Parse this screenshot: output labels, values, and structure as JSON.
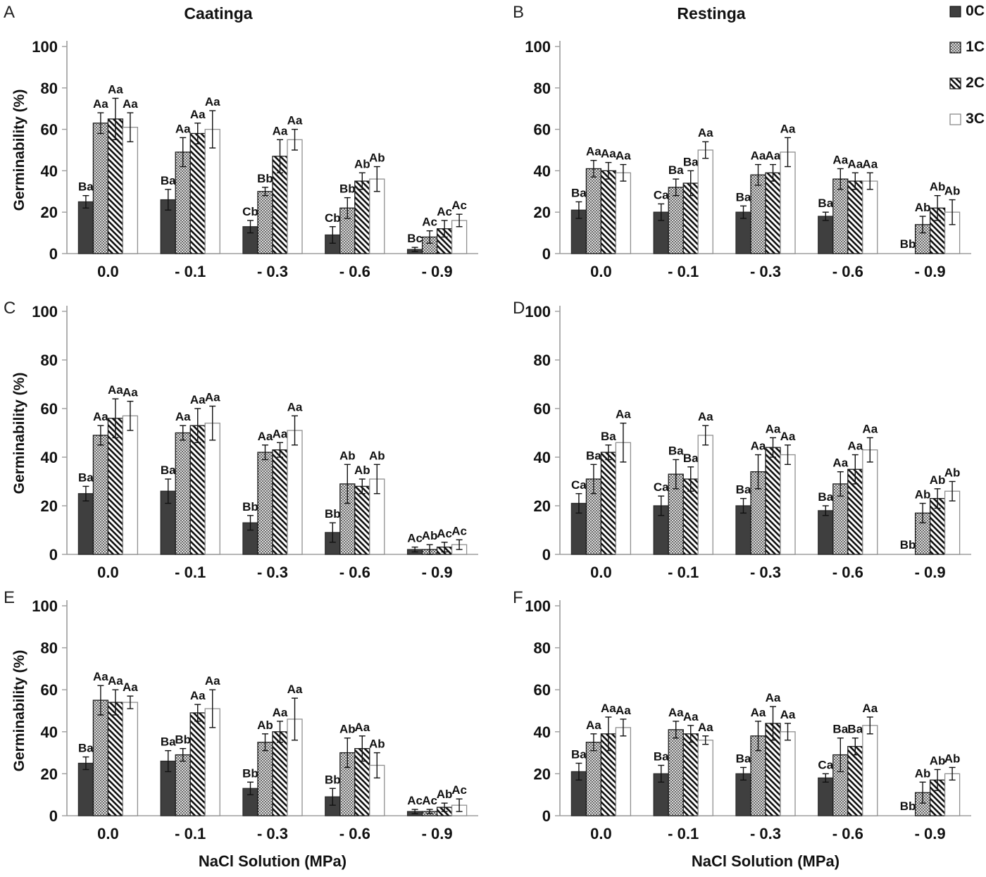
{
  "legend": {
    "items": [
      {
        "label": "0C",
        "pattern": "solid-dark"
      },
      {
        "label": "1C",
        "pattern": "dots"
      },
      {
        "label": "2C",
        "pattern": "diagonal-hatch"
      },
      {
        "label": "3C",
        "pattern": "white"
      }
    ]
  },
  "colors": {
    "bar_solid": "#3f3f3f",
    "hatch_fg": "#111111",
    "dots_bg": "#dedede",
    "dots_fg": "#3c3c3c",
    "axis": "#9d9d9d",
    "text": "#111111"
  },
  "chart_data": [
    {
      "letter": "A",
      "title": "Caatinga",
      "type": "bar",
      "ylabel": "Germinability (%)",
      "ylim": [
        0,
        100
      ],
      "yticks": [
        0,
        20,
        40,
        60,
        80,
        100
      ],
      "categories": [
        "0.0",
        "- 0.1",
        "- 0.3",
        "- 0.6",
        "- 0.9"
      ],
      "series": [
        {
          "name": "0C",
          "values": [
            25,
            26,
            13,
            9,
            2
          ],
          "errors": [
            3,
            5,
            3,
            4,
            1
          ],
          "labels": [
            "Ba",
            "Ba",
            "Cb",
            "Cb",
            "Bc"
          ]
        },
        {
          "name": "1C",
          "values": [
            63,
            49,
            30,
            22,
            8
          ],
          "errors": [
            5,
            7,
            2,
            5,
            3
          ],
          "labels": [
            "Aa",
            "Aa",
            "Bb",
            "Bb",
            "Ac"
          ]
        },
        {
          "name": "2C",
          "values": [
            65,
            58,
            47,
            35,
            12
          ],
          "errors": [
            10,
            5,
            8,
            4,
            4
          ],
          "labels": [
            "Aa",
            "Aa",
            "Aa",
            "Ab",
            "Ac"
          ]
        },
        {
          "name": "3C",
          "values": [
            61,
            60,
            55,
            36,
            16
          ],
          "errors": [
            7,
            9,
            5,
            6,
            3
          ],
          "labels": [
            "Aa",
            "Aa",
            "Aa",
            "Ab",
            "Ac"
          ]
        }
      ]
    },
    {
      "letter": "B",
      "title": "Restinga",
      "type": "bar",
      "ylim": [
        0,
        100
      ],
      "yticks": [
        0,
        20,
        40,
        60,
        80,
        100
      ],
      "categories": [
        "0.0",
        "- 0.1",
        "- 0.3",
        "- 0.6",
        "- 0.9"
      ],
      "series": [
        {
          "name": "0C",
          "values": [
            21,
            20,
            20,
            18,
            0
          ],
          "errors": [
            4,
            4,
            3,
            2,
            0
          ],
          "labels": [
            "Ba",
            "Ca",
            "Ba",
            "Ba",
            "Bb"
          ]
        },
        {
          "name": "1C",
          "values": [
            41,
            32,
            38,
            36,
            14
          ],
          "errors": [
            4,
            4,
            5,
            5,
            4
          ],
          "labels": [
            "Aa",
            "Ba",
            "Aa",
            "Aa",
            "Ab"
          ]
        },
        {
          "name": "2C",
          "values": [
            40,
            34,
            39,
            35,
            22
          ],
          "errors": [
            4,
            6,
            4,
            4,
            6
          ],
          "labels": [
            "Aa",
            "Ba",
            "Aa",
            "Aa",
            "Ab"
          ]
        },
        {
          "name": "3C",
          "values": [
            39,
            50,
            49,
            35,
            20
          ],
          "errors": [
            4,
            4,
            7,
            4,
            6
          ],
          "labels": [
            "Aa",
            "Aa",
            "Aa",
            "Aa",
            "Ab"
          ]
        }
      ]
    },
    {
      "letter": "C",
      "type": "bar",
      "ylabel": "Germinability (%)",
      "ylim": [
        0,
        100
      ],
      "yticks": [
        0,
        20,
        40,
        60,
        80,
        100
      ],
      "categories": [
        "0.0",
        "- 0.1",
        "- 0.3",
        "- 0.6",
        "- 0.9"
      ],
      "series": [
        {
          "name": "0C",
          "values": [
            25,
            26,
            13,
            9,
            2
          ],
          "errors": [
            3,
            5,
            3,
            4,
            1
          ],
          "labels": [
            "Ba",
            "Ba",
            "Bb",
            "Bb",
            "Ac"
          ]
        },
        {
          "name": "1C",
          "values": [
            49,
            50,
            42,
            29,
            2
          ],
          "errors": [
            4,
            3,
            3,
            8,
            2
          ],
          "labels": [
            "Aa",
            "Aa",
            "Aa",
            "Ab",
            "Ab"
          ]
        },
        {
          "name": "2C",
          "values": [
            56,
            53,
            43,
            28,
            3
          ],
          "errors": [
            8,
            7,
            3,
            3,
            2
          ],
          "labels": [
            "Aa",
            "Aa",
            "Aa",
            "Ab",
            "Ac"
          ]
        },
        {
          "name": "3C",
          "values": [
            57,
            54,
            51,
            31,
            4
          ],
          "errors": [
            6,
            7,
            6,
            6,
            2
          ],
          "labels": [
            "Aa",
            "Aa",
            "Aa",
            "Ab",
            "Ac"
          ]
        }
      ]
    },
    {
      "letter": "D",
      "type": "bar",
      "ylim": [
        0,
        100
      ],
      "yticks": [
        0,
        20,
        40,
        60,
        80,
        100
      ],
      "categories": [
        "0.0",
        "- 0.1",
        "- 0.3",
        "- 0.6",
        "- 0.9"
      ],
      "series": [
        {
          "name": "0C",
          "values": [
            21,
            20,
            20,
            18,
            0
          ],
          "errors": [
            4,
            4,
            3,
            2,
            0
          ],
          "labels": [
            "Ca",
            "Ca",
            "Ba",
            "Ba",
            "Bb"
          ]
        },
        {
          "name": "1C",
          "values": [
            31,
            33,
            34,
            29,
            17
          ],
          "errors": [
            6,
            6,
            7,
            5,
            4
          ],
          "labels": [
            "Ba",
            "Ba",
            "Aa",
            "Aa",
            "Ab"
          ]
        },
        {
          "name": "2C",
          "values": [
            42,
            31,
            44,
            35,
            23
          ],
          "errors": [
            3,
            5,
            4,
            6,
            4
          ],
          "labels": [
            "Ba",
            "Ba",
            "Aa",
            "Aa",
            "Ab"
          ]
        },
        {
          "name": "3C",
          "values": [
            46,
            49,
            41,
            43,
            26
          ],
          "errors": [
            8,
            4,
            4,
            5,
            4
          ],
          "labels": [
            "Aa",
            "Aa",
            "Aa",
            "Aa",
            "Ab"
          ]
        }
      ]
    },
    {
      "letter": "E",
      "type": "bar",
      "ylabel": "Germinability (%)",
      "xlabel": "NaCl Solution (MPa)",
      "ylim": [
        0,
        100
      ],
      "yticks": [
        0,
        20,
        40,
        60,
        80,
        100
      ],
      "categories": [
        "0.0",
        "- 0.1",
        "- 0.3",
        "- 0.6",
        "- 0.9"
      ],
      "series": [
        {
          "name": "0C",
          "values": [
            25,
            26,
            13,
            9,
            2
          ],
          "errors": [
            3,
            5,
            3,
            4,
            1
          ],
          "labels": [
            "Ba",
            "Ba",
            "Bb",
            "Bb",
            "Ac"
          ]
        },
        {
          "name": "1C",
          "values": [
            55,
            29,
            35,
            30,
            2
          ],
          "errors": [
            7,
            3,
            4,
            7,
            1
          ],
          "labels": [
            "Aa",
            "Bb",
            "Ab",
            "Ab",
            "Ac"
          ]
        },
        {
          "name": "2C",
          "values": [
            54,
            49,
            40,
            32,
            4
          ],
          "errors": [
            6,
            4,
            5,
            6,
            2
          ],
          "labels": [
            "Aa",
            "Aa",
            "Aa",
            "Aa",
            "Ab"
          ]
        },
        {
          "name": "3C",
          "values": [
            54,
            51,
            46,
            24,
            5
          ],
          "errors": [
            3,
            9,
            10,
            6,
            3
          ],
          "labels": [
            "Aa",
            "Aa",
            "Aa",
            "Ab",
            "Ac"
          ]
        }
      ]
    },
    {
      "letter": "F",
      "type": "bar",
      "xlabel": "NaCl Solution (MPa)",
      "ylim": [
        0,
        100
      ],
      "yticks": [
        0,
        20,
        40,
        60,
        80,
        100
      ],
      "categories": [
        "0.0",
        "- 0.1",
        "- 0.3",
        "- 0.6",
        "- 0.9"
      ],
      "series": [
        {
          "name": "0C",
          "values": [
            21,
            20,
            20,
            18,
            0
          ],
          "errors": [
            4,
            4,
            3,
            2,
            0
          ],
          "labels": [
            "Ba",
            "Ba",
            "Ba",
            "Ca",
            "Bb"
          ]
        },
        {
          "name": "1C",
          "values": [
            35,
            41,
            38,
            29,
            11
          ],
          "errors": [
            4,
            4,
            7,
            8,
            5
          ],
          "labels": [
            "Aa",
            "Aa",
            "Aa",
            "Ba",
            "Ab"
          ]
        },
        {
          "name": "2C",
          "values": [
            39,
            39,
            44,
            33,
            17
          ],
          "errors": [
            8,
            4,
            8,
            4,
            5
          ],
          "labels": [
            "Aa",
            "Aa",
            "Aa",
            "Ba",
            "Ab"
          ]
        },
        {
          "name": "3C",
          "values": [
            42,
            36,
            40,
            43,
            20
          ],
          "errors": [
            4,
            2,
            4,
            4,
            3
          ],
          "labels": [
            "Aa",
            "Aa",
            "Aa",
            "Aa",
            "Ab"
          ]
        }
      ]
    }
  ]
}
